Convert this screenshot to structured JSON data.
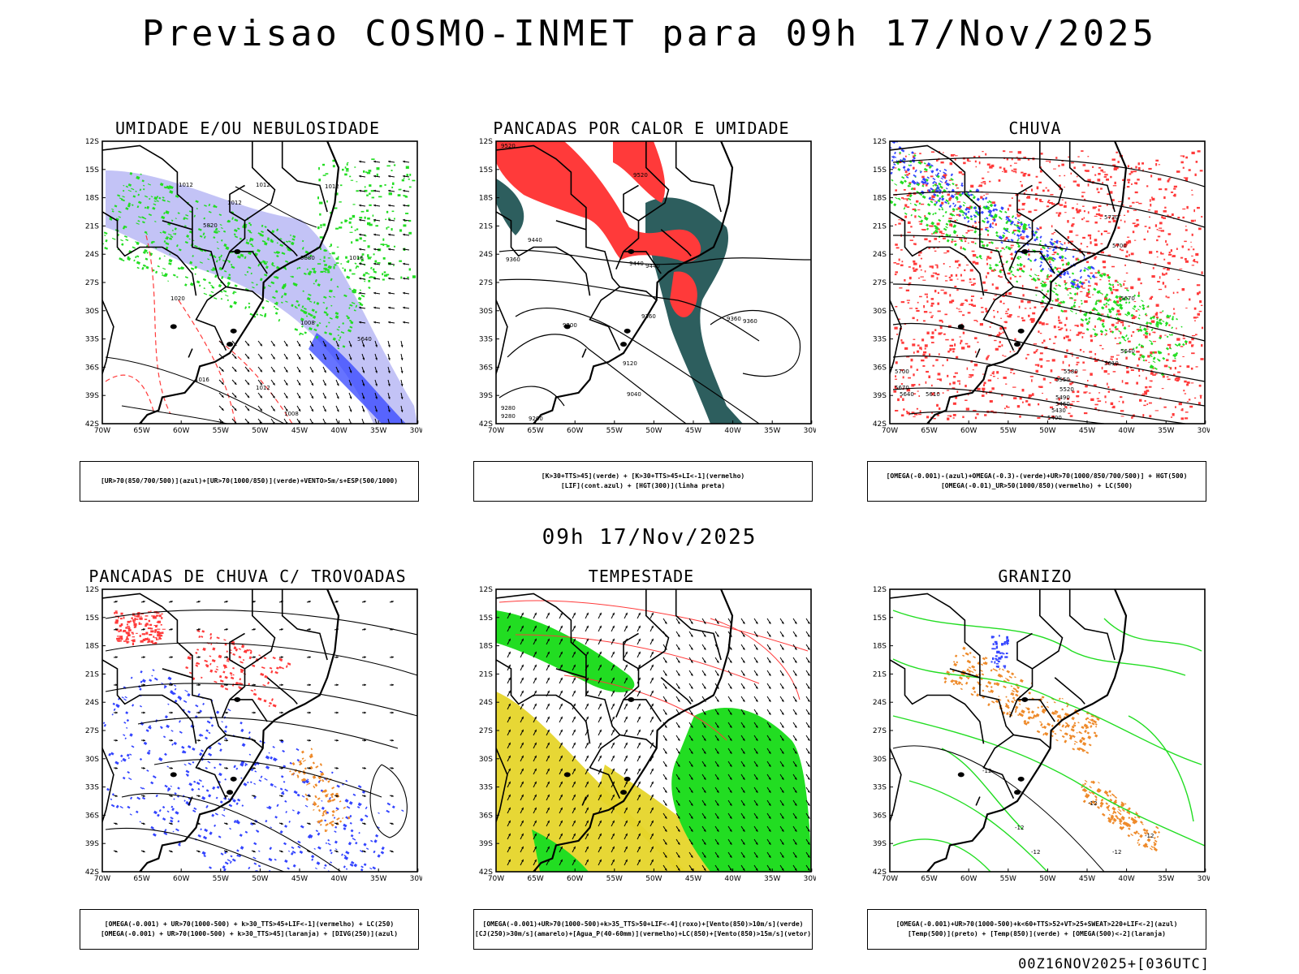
{
  "title": "Previsao COSMO-INMET  para 09h 17/Nov/2025",
  "mid_title": "09h 17/Nov/2025",
  "footer_stamp": "00Z16NOV2025+[036UTC]",
  "axes": {
    "lat_labels": [
      "12S",
      "15S",
      "18S",
      "21S",
      "24S",
      "27S",
      "30S",
      "33S",
      "36S",
      "39S",
      "42S"
    ],
    "lon_labels": [
      "70W",
      "65W",
      "60W",
      "55W",
      "50W",
      "45W",
      "40W",
      "35W",
      "30W"
    ]
  },
  "colors": {
    "red": "#ff3a3a",
    "green": "#22dd22",
    "blue": "#3344ff",
    "lavender": "#b8b8f4",
    "teal": "#2d5e5e",
    "yellow": "#e6d52a",
    "orange": "#ee8a2a"
  },
  "panels": [
    {
      "title": "UMIDADE E/OU NEBULOSIDADE",
      "legend": [
        "[UR>70(850/700/500)](azul)+[UR>70(1000/850)](verde)+VENTO>5m/s+ESP(500/1000)"
      ],
      "contour_labels": [
        "1012",
        "1012",
        "1012",
        "1012",
        "1016",
        "1008",
        "1016",
        "1012",
        "1008",
        "1020",
        "5640",
        "5820",
        "5880"
      ]
    },
    {
      "title": "PANCADAS POR CALOR E UMIDADE",
      "legend": [
        "[K>30+TTS>45](verde)  +  [K>30+TTS>45+LI<-1](vermelho)",
        "[LIF](cont.azul)  +  [HGT(300)](linha preta)"
      ],
      "contour_labels": [
        "9520",
        "9520",
        "9440",
        "9360",
        "9440",
        "9440",
        "9360",
        "9200",
        "9280",
        "9120",
        "9040",
        "9360",
        "9280",
        "9200",
        "9360"
      ]
    },
    {
      "title": "CHUVA",
      "legend": [
        "[OMEGA(-0.001)-(azul)+OMEGA(-0.3)-(verde)+UR>70(1000/850/700/500)]  +  HGT(500)",
        "[OMEGA(-0.01)_UR>50(1000/850)(vermelho)  +  LC(500)"
      ],
      "contour_labels": [
        "5730",
        "5700",
        "5670",
        "5640",
        "5610",
        "5580",
        "5550",
        "5520",
        "5490",
        "5460",
        "5430",
        "5400",
        "5700",
        "5670",
        "5640",
        "5610"
      ]
    },
    {
      "title": "PANCADAS DE CHUVA C/ TROVOADAS",
      "legend": [
        "[OMEGA(-0.001)  +  UR>70(1000-500)  +  k>30_TTS>45+LIF<-1](vermelho)  +  LC(250)",
        "[OMEGA(-0.001)  +  UR>70(1000-500)  +  k>30_TTS>45](laranja)  +  [DIVG(250)](azul)"
      ],
      "contour_labels": []
    },
    {
      "title": "TEMPESTADE",
      "legend": [
        "[OMEGA(-0.001)+UR>70(1000-500)+k>35_TTS>50+LIF<-4](roxo)+[Vento(850)>10m/s](verde)",
        "[CJ(250)>30m/s](amarelo)+[Agua_P(40-60mm)](vermelho)+LC(850)+[Vento(850)>15m/s](vetor)"
      ],
      "contour_labels": []
    },
    {
      "title": "GRANIZO",
      "legend": [
        "[OMEGA(-0.001)+UR>70(1000-500)+k<60+TTS>52+VT>25+SWEAT>220+LIF<-2](azul)",
        "[Temp(500)](preto)  +  [Temp(850)](verde)  +  [OMEGA(500)<-2](laranja)"
      ],
      "contour_labels": [
        "-12",
        "-12",
        "-12",
        "-12",
        "-12",
        "-12"
      ]
    }
  ]
}
